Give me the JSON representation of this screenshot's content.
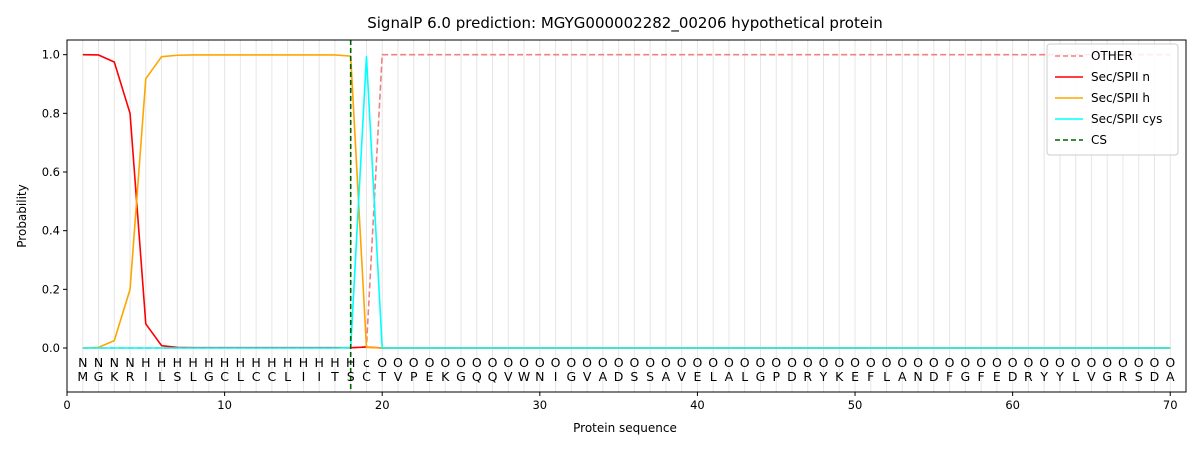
{
  "chart_data": {
    "type": "line",
    "title": "SignalP 6.0 prediction: MGYG000002282_00206 hypothetical protein",
    "xlabel": "Protein sequence",
    "ylabel": "Probability",
    "xlim": [
      0,
      71
    ],
    "ylim": [
      -0.15,
      1.05
    ],
    "xticks": [
      0,
      10,
      20,
      30,
      40,
      50,
      60,
      70
    ],
    "yticks": [
      0.0,
      0.2,
      0.4,
      0.6,
      0.8,
      1.0
    ],
    "ytick_labels": [
      "0.0",
      "0.2",
      "0.4",
      "0.6",
      "0.8",
      "1.0"
    ],
    "grid": "vertical lines at each residue",
    "legend_position": "top-right",
    "sequence": [
      "M",
      "G",
      "K",
      "R",
      "I",
      "L",
      "S",
      "L",
      "G",
      "C",
      "L",
      "C",
      "C",
      "L",
      "I",
      "I",
      "T",
      "S",
      "C",
      "T",
      "V",
      "P",
      "E",
      "K",
      "G",
      "Q",
      "Q",
      "V",
      "W",
      "N",
      "I",
      "G",
      "V",
      "A",
      "D",
      "S",
      "S",
      "A",
      "V",
      "E",
      "L",
      "A",
      "L",
      "G",
      "P",
      "D",
      "R",
      "Y",
      "K",
      "E",
      "F",
      "L",
      "A",
      "N",
      "D",
      "F",
      "G",
      "F",
      "E",
      "D",
      "R",
      "Y",
      "Y",
      "L",
      "V",
      "G",
      "R",
      "S",
      "D",
      "A"
    ],
    "labels": [
      "N",
      "N",
      "N",
      "N",
      "H",
      "H",
      "H",
      "H",
      "H",
      "H",
      "H",
      "H",
      "H",
      "H",
      "H",
      "H",
      "H",
      "H",
      "c",
      "O",
      "O",
      "O",
      "O",
      "O",
      "O",
      "O",
      "O",
      "O",
      "O",
      "O",
      "O",
      "O",
      "O",
      "O",
      "O",
      "O",
      "O",
      "O",
      "O",
      "O",
      "O",
      "O",
      "O",
      "O",
      "O",
      "O",
      "O",
      "O",
      "O",
      "O",
      "O",
      "O",
      "O",
      "O",
      "O",
      "O",
      "O",
      "O",
      "O",
      "O",
      "O",
      "O",
      "O",
      "O",
      "O",
      "O",
      "O",
      "O",
      "O",
      "O"
    ],
    "label_colors": {
      "N": "#ff0000",
      "H": "#ffa500",
      "c": "#00ffff",
      "O": "#808080"
    },
    "series": [
      {
        "name": "OTHER",
        "color": "#f08080",
        "dash": "dashed",
        "values": [
          0,
          0,
          0,
          0,
          0,
          0,
          0,
          0,
          0,
          0,
          0,
          0,
          0,
          0,
          0,
          0,
          0,
          0,
          0.005,
          1,
          1,
          1,
          1,
          1,
          1,
          1,
          1,
          1,
          1,
          1,
          1,
          1,
          1,
          1,
          1,
          1,
          1,
          1,
          1,
          1,
          1,
          1,
          1,
          1,
          1,
          1,
          1,
          1,
          1,
          1,
          1,
          1,
          1,
          1,
          1,
          1,
          1,
          1,
          1,
          1,
          1,
          1,
          1,
          1,
          1,
          1,
          1,
          1,
          1,
          1
        ]
      },
      {
        "name": "Sec/SPII n",
        "color": "#ff0000",
        "dash": "solid",
        "values": [
          1.0,
          0.999,
          0.975,
          0.8,
          0.082,
          0.008,
          0.002,
          0.001,
          0.001,
          0.001,
          0.001,
          0.001,
          0.001,
          0.001,
          0.001,
          0.001,
          0.001,
          0.001,
          0.003,
          0,
          0,
          0,
          0,
          0,
          0,
          0,
          0,
          0,
          0,
          0,
          0,
          0,
          0,
          0,
          0,
          0,
          0,
          0,
          0,
          0,
          0,
          0,
          0,
          0,
          0,
          0,
          0,
          0,
          0,
          0,
          0,
          0,
          0,
          0,
          0,
          0,
          0,
          0,
          0,
          0,
          0,
          0,
          0,
          0,
          0,
          0,
          0,
          0,
          0,
          0
        ]
      },
      {
        "name": "Sec/SPII h",
        "color": "#ffa500",
        "dash": "solid",
        "values": [
          0,
          0.002,
          0.025,
          0.2,
          0.918,
          0.993,
          0.998,
          0.999,
          0.999,
          0.999,
          0.999,
          0.999,
          0.999,
          0.999,
          0.999,
          0.999,
          0.999,
          0.995,
          0.002,
          0,
          0,
          0,
          0,
          0,
          0,
          0,
          0,
          0,
          0,
          0,
          0,
          0,
          0,
          0,
          0,
          0,
          0,
          0,
          0,
          0,
          0,
          0,
          0,
          0,
          0,
          0,
          0,
          0,
          0,
          0,
          0,
          0,
          0,
          0,
          0,
          0,
          0,
          0,
          0,
          0,
          0,
          0,
          0,
          0,
          0,
          0,
          0,
          0,
          0,
          0
        ]
      },
      {
        "name": "Sec/SPII cys",
        "color": "#00ffff",
        "dash": "solid",
        "values": [
          0,
          0,
          0,
          0,
          0,
          0,
          0,
          0,
          0,
          0,
          0,
          0,
          0,
          0,
          0,
          0,
          0,
          0.001,
          0.993,
          0,
          0,
          0,
          0,
          0,
          0,
          0,
          0,
          0,
          0,
          0,
          0,
          0,
          0,
          0,
          0,
          0,
          0,
          0,
          0,
          0,
          0,
          0,
          0,
          0,
          0,
          0,
          0,
          0,
          0,
          0,
          0,
          0,
          0,
          0,
          0,
          0,
          0,
          0,
          0,
          0,
          0,
          0,
          0,
          0,
          0,
          0,
          0,
          0,
          0,
          0
        ]
      }
    ],
    "cleavage_site": {
      "name": "CS",
      "x": 18,
      "color": "#006400",
      "dash": "dashed"
    }
  }
}
